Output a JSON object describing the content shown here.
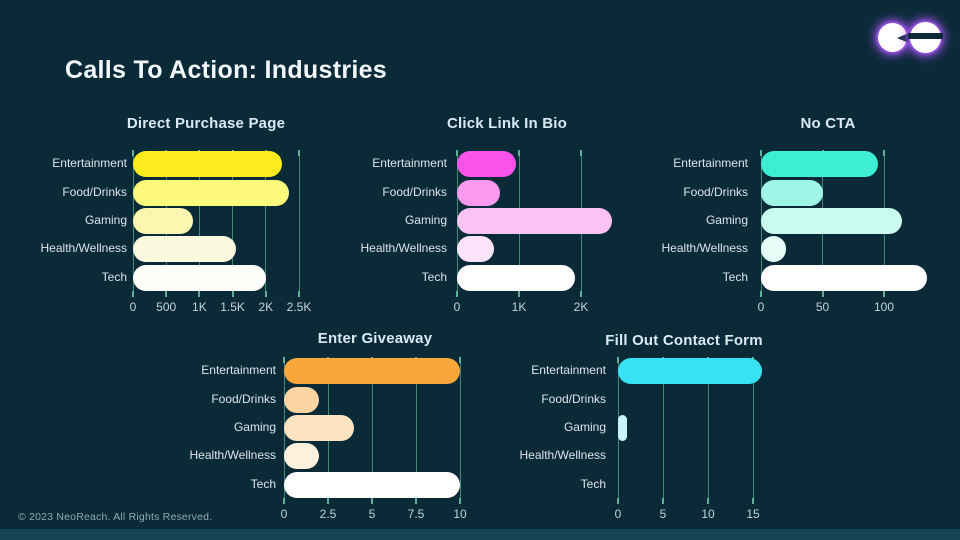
{
  "page": {
    "title": "Calls To Action: Industries",
    "footer": "© 2023 NeoReach. All Rights Reserved.",
    "brand": "NeoReach"
  },
  "colors": {
    "background": "#0b2a38",
    "bottom_strip": "#164452",
    "gridline": "#418a76",
    "tick_stub": "#62b098",
    "page_title_text": "#f4f8fa",
    "chart_title_text": "#d9eaf2",
    "category_label_text": "#dce5ea",
    "tick_label_text": "#c3d2da",
    "footer_text": "#90a7b2",
    "logo_glow": "#a855f7"
  },
  "chart_data": [
    {
      "type": "bar",
      "orientation": "horizontal",
      "title": "Direct Purchase Page",
      "categories": [
        "Entertainment",
        "Food/Drinks",
        "Gaming",
        "Health/Wellness",
        "Tech"
      ],
      "values": [
        2250,
        2350,
        900,
        1550,
        2000
      ],
      "bar_colors": [
        "#fcec1e",
        "#fdf97d",
        "#fcf7b0",
        "#fbf8e0",
        "#fffefa"
      ],
      "xlim": [
        0,
        2500
      ],
      "grid": true,
      "ticks": [
        {
          "label": "0",
          "value": 0
        },
        {
          "label": "500",
          "value": 500
        },
        {
          "label": "1K",
          "value": 1000
        },
        {
          "label": "1.5K",
          "value": 1500
        },
        {
          "label": "2K",
          "value": 2000
        },
        {
          "label": "2.5K",
          "value": 2500
        }
      ]
    },
    {
      "type": "bar",
      "orientation": "horizontal",
      "title": "Click Link In Bio",
      "categories": [
        "Entertainment",
        "Food/Drinks",
        "Gaming",
        "Health/Wellness",
        "Tech"
      ],
      "values": [
        950,
        700,
        2500,
        600,
        1900
      ],
      "bar_colors": [
        "#f953ea",
        "#f99aef",
        "#fbc3f4",
        "#fce3f9",
        "#ffffff"
      ],
      "xlim": [
        0,
        2000
      ],
      "grid": true,
      "ticks": [
        {
          "label": "0",
          "value": 0
        },
        {
          "label": "1K",
          "value": 1000
        },
        {
          "label": "2K",
          "value": 2000
        }
      ]
    },
    {
      "type": "bar",
      "orientation": "horizontal",
      "title": "No CTA",
      "categories": [
        "Entertainment",
        "Food/Drinks",
        "Gaming",
        "Health/Wellness",
        "Tech"
      ],
      "values": [
        95,
        50,
        115,
        20,
        135
      ],
      "bar_colors": [
        "#3eeed4",
        "#9ff5e5",
        "#cbfaee",
        "#e6fdf8",
        "#ffffff"
      ],
      "xlim": [
        0,
        100
      ],
      "grid": true,
      "ticks": [
        {
          "label": "0",
          "value": 0
        },
        {
          "label": "50",
          "value": 50
        },
        {
          "label": "100",
          "value": 100
        }
      ]
    },
    {
      "type": "bar",
      "orientation": "horizontal",
      "title": "Enter Giveaway",
      "categories": [
        "Entertainment",
        "Food/Drinks",
        "Gaming",
        "Health/Wellness",
        "Tech"
      ],
      "values": [
        10,
        2,
        4,
        2,
        10
      ],
      "bar_colors": [
        "#f9a73d",
        "#fbd5a2",
        "#fce4c2",
        "#fdf1dd",
        "#ffffff"
      ],
      "xlim": [
        0,
        10
      ],
      "grid": true,
      "ticks": [
        {
          "label": "0",
          "value": 0
        },
        {
          "label": "2.5",
          "value": 2.5
        },
        {
          "label": "5",
          "value": 5
        },
        {
          "label": "7.5",
          "value": 7.5
        },
        {
          "label": "10",
          "value": 10
        }
      ]
    },
    {
      "type": "bar",
      "orientation": "horizontal",
      "title": "Fill Out Contact Form",
      "categories": [
        "Entertainment",
        "Food/Drinks",
        "Gaming",
        "Health/Wellness",
        "Tech"
      ],
      "values": [
        16,
        0,
        1,
        0,
        0
      ],
      "bar_colors": [
        "#38e1f4",
        "#8eebf8",
        "#c8f2fa",
        "#e1f8fc",
        "#ffffff"
      ],
      "xlim": [
        0,
        15
      ],
      "grid": true,
      "ticks": [
        {
          "label": "0",
          "value": 0
        },
        {
          "label": "5",
          "value": 5
        },
        {
          "label": "10",
          "value": 10
        },
        {
          "label": "15",
          "value": 15
        }
      ]
    }
  ]
}
